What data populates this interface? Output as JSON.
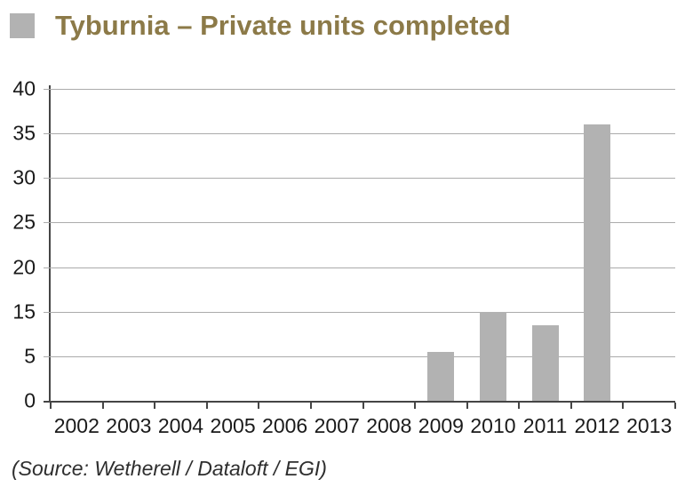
{
  "header": {
    "title": "Tyburnia – Private units completed"
  },
  "chart_data": {
    "type": "bar",
    "title": "Tyburnia – Private units completed",
    "categories": [
      "2002",
      "2003",
      "2004",
      "2005",
      "2006",
      "2007",
      "2008",
      "2009",
      "2010",
      "2011",
      "2012",
      "2013"
    ],
    "values": [
      0,
      0,
      0,
      0,
      0,
      0,
      0,
      6,
      15,
      12,
      36,
      0
    ],
    "xlabel": "",
    "ylabel": "",
    "ylim": [
      0,
      40
    ],
    "y_tick_labels_top_to_bottom": [
      "40",
      "35",
      "30",
      "25",
      "20",
      "15",
      "5",
      "0"
    ],
    "y_tick_values_top_to_bottom": [
      40,
      35,
      30,
      25,
      20,
      15,
      5,
      0
    ],
    "grid": true,
    "legend_position": "top-left",
    "legend_marker": "gray-square"
  },
  "footer": {
    "source": "(Source: Wetherell / Dataloft / EGI)"
  },
  "colors": {
    "title_text": "#8c7a48",
    "bar_fill": "#b2b2b2",
    "legend_swatch": "#b2b2b2",
    "gridline": "#ababab",
    "axis_line": "#454545",
    "tick_label_text": "#1a1a1a",
    "source_text": "#2e2e2e",
    "background": "#ffffff"
  }
}
